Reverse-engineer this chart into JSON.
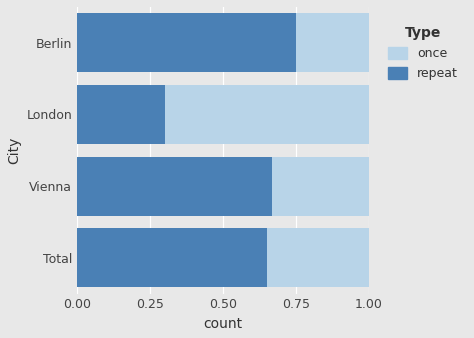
{
  "categories": [
    "Total",
    "Vienna",
    "London",
    "Berlin"
  ],
  "repeat_values": [
    0.65,
    0.667,
    0.3,
    0.75
  ],
  "once_values": [
    0.35,
    0.333,
    0.7,
    0.25
  ],
  "color_repeat": "#4a80b5",
  "color_once": "#b8d4e8",
  "xlabel": "count",
  "ylabel": "City",
  "xlim": [
    0,
    1.0
  ],
  "xticks": [
    0.0,
    0.25,
    0.5,
    0.75,
    1.0
  ],
  "xtick_labels": [
    "0.00",
    "0.25",
    "0.50",
    "0.75",
    "1.00"
  ],
  "legend_title": "Type",
  "legend_labels": [
    "once",
    "repeat"
  ],
  "legend_colors": [
    "#b8d4e8",
    "#4a80b5"
  ],
  "outer_background": "#e8e8e8",
  "panel_background": "#e8e8e8",
  "grid_color": "#ffffff",
  "bar_height": 0.82
}
